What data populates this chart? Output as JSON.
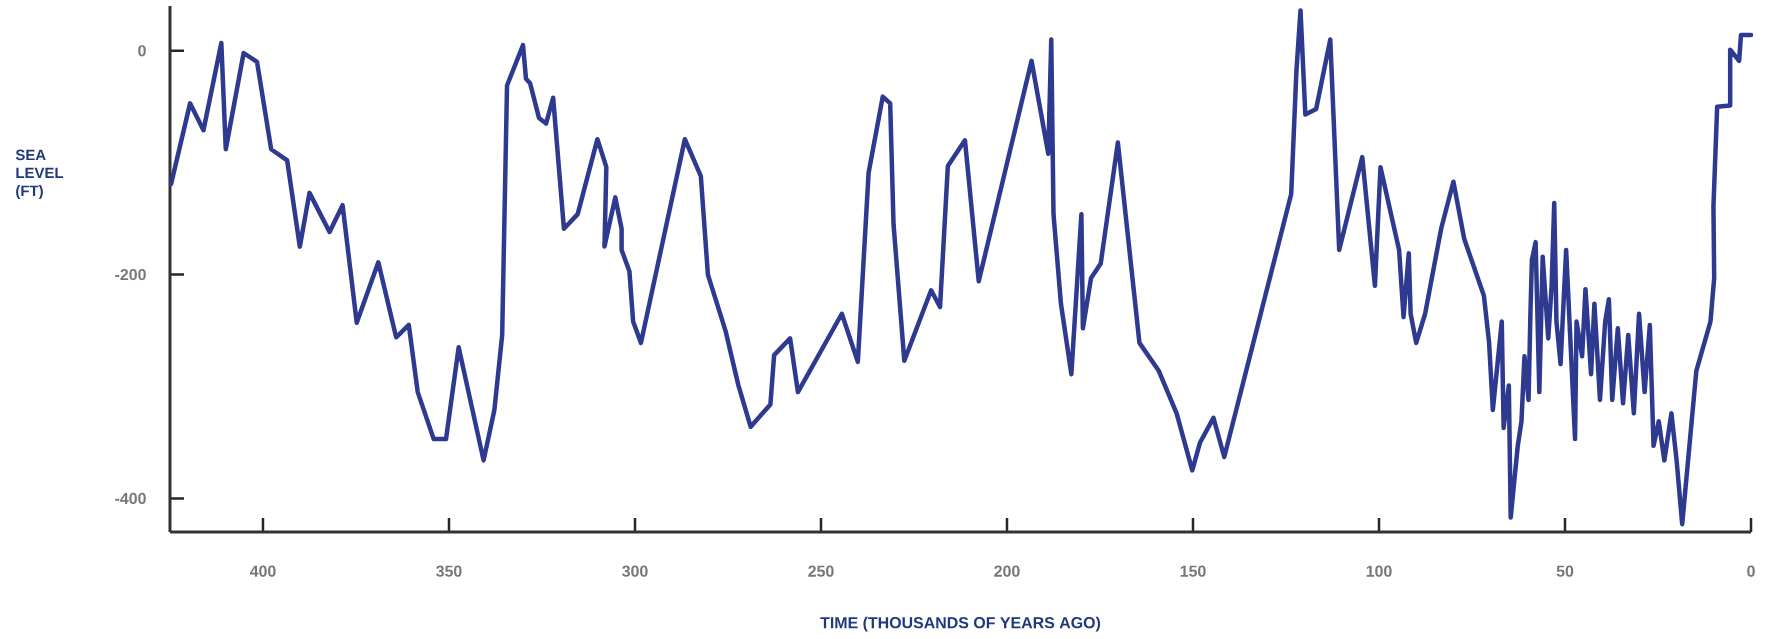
{
  "chart_data": {
    "type": "line",
    "xlabel": "TIME (THOUSANDS OF YEARS AGO)",
    "ylabel": "SEA LEVEL (FT)",
    "xlim": [
      425,
      0
    ],
    "ylim": [
      -430,
      40
    ],
    "xticks": [
      400,
      350,
      300,
      250,
      200,
      150,
      100,
      50,
      0
    ],
    "yticks": [
      0,
      -200,
      -400
    ],
    "grid": false,
    "legend": false,
    "marker": "none",
    "line_style": "solid",
    "series": [
      {
        "color": "#2e3a8f",
        "x": [
          424.7,
          419.6,
          416,
          411.2,
          410,
          405.2,
          401.6,
          397.8,
          393.5,
          390.1,
          387.5,
          382.1,
          378.6,
          374.8,
          369,
          364.2,
          360.8,
          358.4,
          354.1,
          350.8,
          347.4,
          340.7,
          337.8,
          335.7,
          334.4,
          330.1,
          329.3,
          328.2,
          325.8,
          323.9,
          322,
          319.1,
          315.4,
          310.1,
          307.7,
          308.2,
          305.3,
          303.6,
          303.6,
          301.5,
          300.5,
          298.4,
          286.6,
          282.3,
          280.4,
          275.6,
          272.2,
          268.9,
          263.6,
          262.6,
          258.3,
          256.2,
          244.4,
          240.1,
          237.2,
          233.4,
          231.4,
          230.5,
          227.6,
          220.4,
          218,
          215.9,
          211.3,
          207.6,
          193.4,
          188.9,
          188.1,
          187.5,
          185.5,
          182.7,
          180,
          179.6,
          177.4,
          174.8,
          170.2,
          164.4,
          159.2,
          154.4,
          150.2,
          148.1,
          144.5,
          141.6,
          123.6,
          122.2,
          121.1,
          119.8,
          116.9,
          113.1,
          110.7,
          104.5,
          101.1,
          99.6,
          94.6,
          93.4,
          92,
          91.5,
          90,
          87.6,
          83.3,
          80,
          77.1,
          71.8,
          70.4,
          69.4,
          67,
          66.5,
          65.1,
          64.6,
          62.7,
          61.7,
          60.9,
          59.8,
          59.3,
          58.9,
          57.9,
          56.9,
          56,
          54.5,
          53.6,
          52.9,
          52.3,
          51.2,
          49.7,
          47.3,
          46.9,
          45.4,
          44.5,
          43,
          42.1,
          40.6,
          39.2,
          38.2,
          37.3,
          35.8,
          34.4,
          33,
          31.5,
          30.1,
          28.6,
          27.2,
          26.2,
          24.8,
          23.3,
          21.4,
          20,
          18.5,
          14.7,
          10.9,
          9.9,
          10.1,
          9.1,
          5.6,
          5.6,
          3.2,
          2.7,
          0
        ],
        "values": [
          -119,
          -47,
          -71,
          7,
          -88,
          -2,
          -10,
          -88,
          -98,
          -175,
          -127,
          -162,
          -138,
          -243,
          -189,
          -256,
          -245,
          -305,
          -347,
          -347,
          -265,
          -366,
          -321,
          -254,
          -31,
          5,
          -25,
          -29,
          -60,
          -65,
          -42,
          -159,
          -146,
          -79,
          -104,
          -175,
          -131,
          -159,
          -178,
          -197,
          -242,
          -261,
          -79,
          -112,
          -200,
          -251,
          -299,
          -336,
          -316,
          -272,
          -257,
          -305,
          -235,
          -278,
          -109,
          -41,
          -47,
          -155,
          -277,
          -214,
          -229,
          -103,
          -80,
          -206,
          -9,
          -92,
          10,
          -146,
          -226,
          -289,
          -146,
          -248,
          -203,
          -190,
          -82,
          -261,
          -286,
          -324,
          -375,
          -350,
          -328,
          -363,
          -128,
          -18,
          36,
          -57,
          -52,
          10,
          -178,
          -95,
          -210,
          -104,
          -178,
          -238,
          -181,
          -235,
          -261,
          -235,
          -159,
          -117,
          -168,
          -219,
          -261,
          -321,
          -242,
          -337,
          -299,
          -417,
          -353,
          -331,
          -273,
          -312,
          -235,
          -187,
          -171,
          -305,
          -184,
          -257,
          -210,
          -136,
          -242,
          -280,
          -178,
          -347,
          -242,
          -273,
          -213,
          -289,
          -226,
          -312,
          -242,
          -222,
          -312,
          -248,
          -315,
          -254,
          -324,
          -235,
          -305,
          -245,
          -353,
          -331,
          -366,
          -324,
          -366,
          -423,
          -286,
          -242,
          -203,
          -139,
          -50,
          -49,
          1,
          -9,
          14,
          14
        ]
      }
    ]
  }
}
